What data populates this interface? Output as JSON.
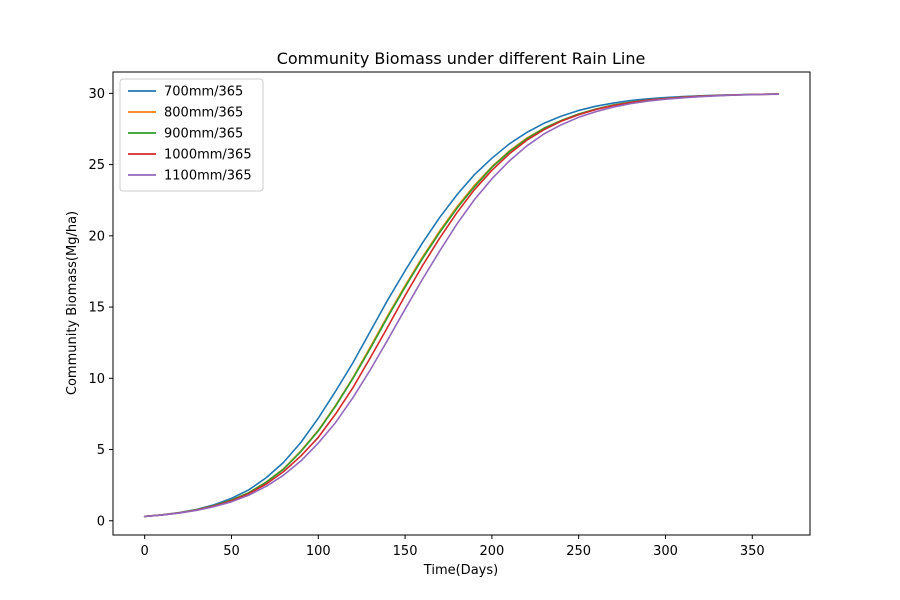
{
  "chart_data": {
    "type": "line",
    "title": "Community Biomass under different Rain Line",
    "xlabel": "Time(Days)",
    "ylabel": "Community Biomass(Mg/ha)",
    "xlim": [
      -18.25,
      383.25
    ],
    "ylim": [
      -1.0,
      31.5
    ],
    "xticks": [
      0,
      50,
      100,
      150,
      200,
      250,
      300,
      350
    ],
    "yticks": [
      0,
      5,
      10,
      15,
      20,
      25,
      30
    ],
    "grid": false,
    "legend_position": "upper-left",
    "x": [
      0,
      10,
      20,
      30,
      40,
      50,
      60,
      70,
      80,
      90,
      100,
      110,
      120,
      130,
      140,
      150,
      160,
      170,
      180,
      190,
      200,
      210,
      220,
      230,
      240,
      250,
      260,
      270,
      280,
      290,
      300,
      310,
      320,
      330,
      340,
      350,
      365
    ],
    "series": [
      {
        "name": "700mm/365",
        "color": "#1f77b4",
        "values": [
          0.3,
          0.42,
          0.58,
          0.8,
          1.12,
          1.57,
          2.17,
          3.02,
          4.1,
          5.5,
          7.2,
          9.1,
          11.1,
          13.3,
          15.5,
          17.55,
          19.5,
          21.3,
          22.9,
          24.3,
          25.45,
          26.45,
          27.25,
          27.9,
          28.4,
          28.8,
          29.1,
          29.32,
          29.5,
          29.62,
          29.71,
          29.78,
          29.83,
          29.87,
          29.9,
          29.93,
          29.95
        ]
      },
      {
        "name": "800mm/365",
        "color": "#ff7f0e",
        "values": [
          0.3,
          0.41,
          0.56,
          0.77,
          1.06,
          1.45,
          1.98,
          2.72,
          3.65,
          4.9,
          6.35,
          8.1,
          10.05,
          12.2,
          14.4,
          16.5,
          18.5,
          20.35,
          22.05,
          23.55,
          24.85,
          25.95,
          26.85,
          27.55,
          28.1,
          28.55,
          28.9,
          29.18,
          29.38,
          29.53,
          29.64,
          29.73,
          29.8,
          29.85,
          29.89,
          29.92,
          29.95
        ]
      },
      {
        "name": "900mm/365",
        "color": "#2ca02c",
        "values": [
          0.3,
          0.41,
          0.56,
          0.77,
          1.06,
          1.45,
          1.97,
          2.7,
          3.62,
          4.86,
          6.3,
          8.05,
          10.0,
          12.1,
          14.3,
          16.4,
          18.4,
          20.25,
          21.95,
          23.45,
          24.8,
          25.9,
          26.8,
          27.55,
          28.1,
          28.55,
          28.9,
          29.18,
          29.38,
          29.53,
          29.64,
          29.73,
          29.8,
          29.85,
          29.89,
          29.92,
          29.95
        ]
      },
      {
        "name": "1000mm/365",
        "color": "#d62728",
        "values": [
          0.3,
          0.41,
          0.55,
          0.75,
          1.03,
          1.4,
          1.9,
          2.58,
          3.45,
          4.55,
          5.85,
          7.5,
          9.35,
          11.45,
          13.6,
          15.8,
          17.9,
          19.85,
          21.65,
          23.25,
          24.6,
          25.75,
          26.7,
          27.45,
          28.05,
          28.5,
          28.87,
          29.15,
          29.36,
          29.52,
          29.63,
          29.72,
          29.79,
          29.85,
          29.89,
          29.92,
          29.95
        ]
      },
      {
        "name": "1100mm/365",
        "color": "#9467bd",
        "values": [
          0.3,
          0.4,
          0.54,
          0.73,
          0.99,
          1.33,
          1.8,
          2.42,
          3.2,
          4.2,
          5.45,
          6.9,
          8.65,
          10.6,
          12.7,
          14.85,
          16.95,
          18.95,
          20.85,
          22.55,
          24.0,
          25.25,
          26.3,
          27.15,
          27.8,
          28.32,
          28.72,
          29.04,
          29.28,
          29.46,
          29.59,
          29.69,
          29.77,
          29.83,
          29.88,
          29.91,
          29.94
        ]
      }
    ]
  }
}
